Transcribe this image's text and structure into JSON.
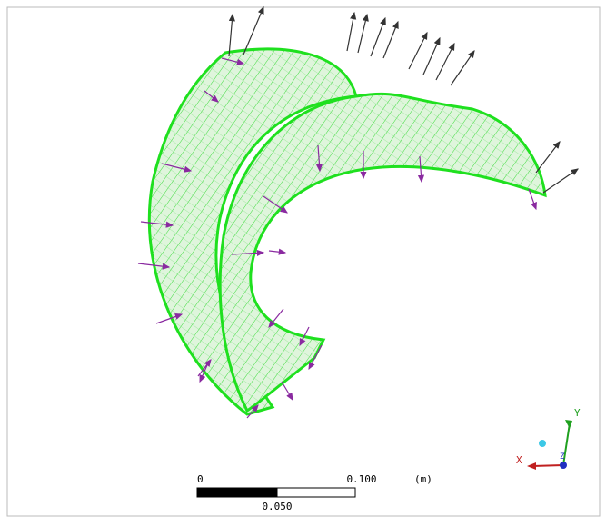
{
  "viewport": {
    "scale_bar": {
      "start_label": "0",
      "end_label": "0.100",
      "unit": "(m)",
      "mid_label": "0.050"
    },
    "triad": {
      "x": "X",
      "y": "Y",
      "z": "Z"
    }
  }
}
